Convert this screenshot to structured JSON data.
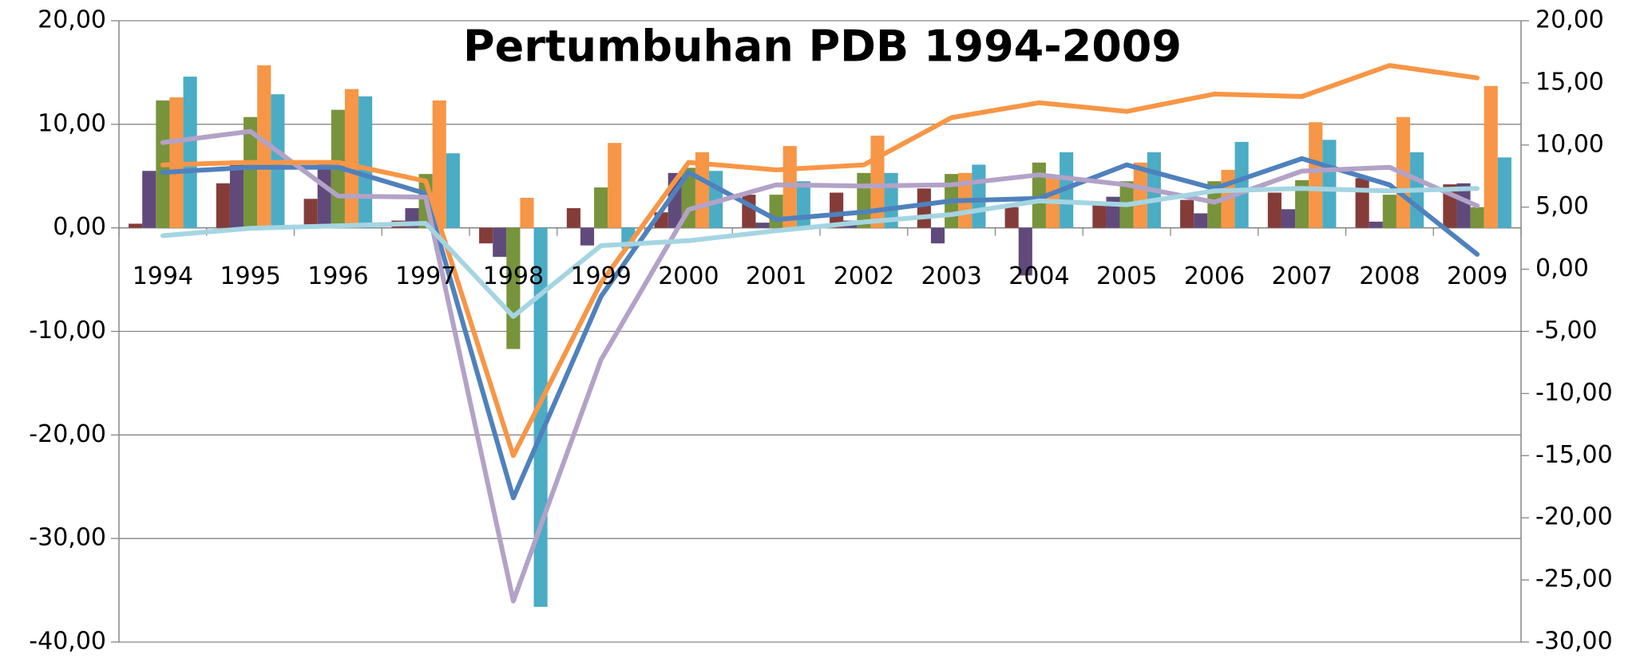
{
  "chart_data": {
    "type": "combo",
    "title": "Pertumbuhan PDB 1994-2009",
    "categories": [
      "1994",
      "1995",
      "1996",
      "1997",
      "1998",
      "1999",
      "2000",
      "2001",
      "2002",
      "2003",
      "2004",
      "2005",
      "2006",
      "2007",
      "2008",
      "2009"
    ],
    "series": [
      {
        "type": "bar",
        "color": "#843c39",
        "values": [
          0.4,
          4.3,
          2.8,
          0.7,
          -1.5,
          1.9,
          1.5,
          3.2,
          3.4,
          3.8,
          2.0,
          2.4,
          2.7,
          3.4,
          4.8,
          4.2
        ]
      },
      {
        "type": "bar",
        "color": "#604a7b",
        "values": [
          5.5,
          6.5,
          6.1,
          1.9,
          -2.8,
          -1.7,
          5.3,
          0.5,
          0.7,
          -1.5,
          -4.6,
          3.0,
          1.4,
          1.8,
          0.6,
          4.3
        ]
      },
      {
        "type": "bar",
        "color": "#77933c",
        "values": [
          12.3,
          10.7,
          11.4,
          5.2,
          -11.7,
          3.9,
          5.8,
          3.2,
          5.3,
          5.2,
          6.3,
          4.5,
          4.5,
          4.6,
          3.2,
          2.0
        ]
      },
      {
        "type": "bar",
        "color": "#f79646",
        "values": [
          12.6,
          15.7,
          13.4,
          12.3,
          2.9,
          8.2,
          7.3,
          7.9,
          8.9,
          5.3,
          4.8,
          6.3,
          5.6,
          10.2,
          10.7,
          13.7
        ]
      },
      {
        "type": "bar",
        "color": "#4bacc6",
        "values": [
          14.6,
          12.9,
          12.7,
          7.2,
          -36.6,
          -2.0,
          5.5,
          4.5,
          5.3,
          6.1,
          7.3,
          7.3,
          8.3,
          8.5,
          7.3,
          6.8
        ]
      },
      {
        "type": "line",
        "axis": "y2",
        "color": "#4f81bd",
        "values": [
          7.8,
          8.2,
          8.2,
          6.1,
          -18.4,
          -2.2,
          7.8,
          4.0,
          4.6,
          5.5,
          5.7,
          8.4,
          6.5,
          8.9,
          6.8,
          1.2
        ]
      },
      {
        "type": "line",
        "axis": "y2",
        "color": "#b3a2c7",
        "values": [
          10.2,
          11.1,
          5.9,
          5.8,
          -26.7,
          -7.3,
          4.8,
          6.8,
          6.7,
          6.8,
          7.6,
          6.8,
          5.4,
          7.9,
          8.2,
          5.1
        ]
      },
      {
        "type": "line",
        "axis": "y2",
        "color": "#f79646",
        "values": [
          8.4,
          8.6,
          8.6,
          7.1,
          -15.0,
          -1.1,
          8.6,
          8.0,
          8.4,
          12.2,
          13.4,
          12.7,
          14.1,
          13.9,
          16.4,
          15.4
        ]
      },
      {
        "type": "line",
        "axis": "y2",
        "color": "#a5d5e2",
        "values": [
          2.7,
          3.3,
          3.5,
          3.7,
          -3.8,
          1.9,
          2.3,
          3.1,
          3.8,
          4.4,
          5.5,
          5.2,
          6.3,
          6.5,
          6.3,
          6.5
        ]
      }
    ],
    "ylim": [
      -40,
      20
    ],
    "yticks": [
      {
        "value": -40,
        "label": "-40,00"
      },
      {
        "value": -30,
        "label": "-30,00"
      },
      {
        "value": -20,
        "label": "-20,00"
      },
      {
        "value": -10,
        "label": "-10,00"
      },
      {
        "value": 0,
        "label": "0,00"
      },
      {
        "value": 10,
        "label": "10,00"
      },
      {
        "value": 20,
        "label": "20,00"
      }
    ],
    "y2lim": [
      -30,
      20
    ],
    "y2ticks": [
      {
        "value": -30,
        "label": "-30,00"
      },
      {
        "value": -25,
        "label": "-25,00"
      },
      {
        "value": -20,
        "label": "-20,00"
      },
      {
        "value": -15,
        "label": "-15,00"
      },
      {
        "value": -10,
        "label": "-10,00"
      },
      {
        "value": -5,
        "label": "-5,00"
      },
      {
        "value": 0,
        "label": "0,00"
      },
      {
        "value": 5,
        "label": "5,00"
      },
      {
        "value": 10,
        "label": "10,00"
      },
      {
        "value": 15,
        "label": "15,00"
      },
      {
        "value": 20,
        "label": "20,00"
      }
    ],
    "grid": true
  }
}
